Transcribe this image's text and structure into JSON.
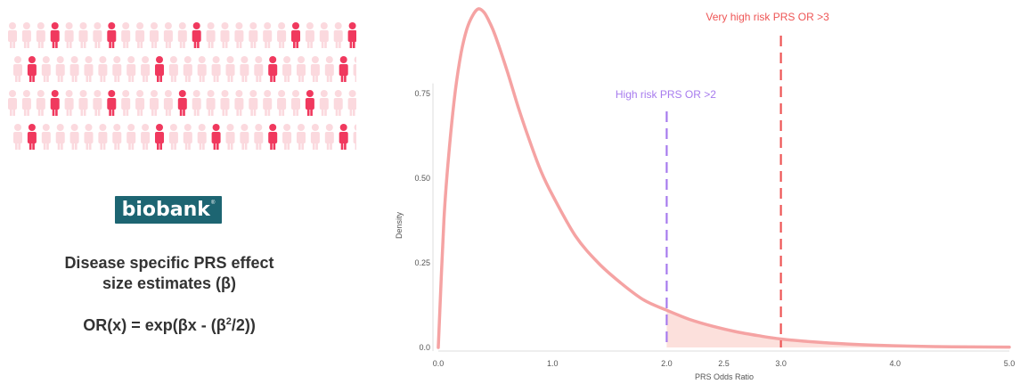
{
  "left_panel": {
    "logo_text": "biobank",
    "logo_mark": "®",
    "description_line1": "Disease specific PRS effect",
    "description_line2": "size estimates (β)",
    "formula_prefix": "OR(x) = exp(βx - (β",
    "formula_exp": "2",
    "formula_suffix": "/2))",
    "people_icon": "person-icon",
    "people_colors": {
      "highlight": "#f0395e",
      "faded": "#fbd9de"
    }
  },
  "chart_data": {
    "type": "area",
    "title": "",
    "xlabel": "PRS Odds Ratio",
    "ylabel": "Density",
    "xlim": [
      0,
      5
    ],
    "ylim": [
      0,
      1.0
    ],
    "x_ticks": [
      {
        "value": 0,
        "label": "0.0"
      },
      {
        "value": 1,
        "label": "1.0"
      },
      {
        "value": 2,
        "label": "2.0"
      },
      {
        "value": 2.5,
        "label": "2.5"
      },
      {
        "value": 3,
        "label": "3.0"
      },
      {
        "value": 4,
        "label": "4.0"
      },
      {
        "value": 5,
        "label": "5.0"
      }
    ],
    "y_ticks": [
      {
        "value": 0.0,
        "label": "0.0"
      },
      {
        "value": 0.25,
        "label": "0.25"
      },
      {
        "value": 0.5,
        "label": "0.50"
      },
      {
        "value": 0.75,
        "label": "0.75"
      }
    ],
    "series": [
      {
        "color": "#f5a3a3",
        "x": [
          0,
          0.05,
          0.1,
          0.15,
          0.2,
          0.25,
          0.3,
          0.35,
          0.4,
          0.45,
          0.5,
          0.6,
          0.7,
          0.8,
          0.9,
          1.0,
          1.2,
          1.4,
          1.6,
          1.8,
          2.0,
          2.2,
          2.4,
          2.6,
          2.8,
          3.0,
          3.3,
          3.6,
          4.0,
          4.5,
          5.0
        ],
        "y": [
          0.0,
          0.38,
          0.6,
          0.76,
          0.87,
          0.94,
          0.98,
          1.0,
          0.99,
          0.96,
          0.92,
          0.82,
          0.71,
          0.61,
          0.52,
          0.45,
          0.33,
          0.25,
          0.19,
          0.14,
          0.11,
          0.083,
          0.063,
          0.047,
          0.035,
          0.025,
          0.016,
          0.01,
          0.005,
          0.002,
          0.001
        ]
      }
    ],
    "shaded_region": {
      "from": 2.0,
      "to": 5.0,
      "color": "#fbd5d0"
    },
    "thresholds": [
      {
        "x": 2.0,
        "label": "High risk PRS OR >2",
        "color": "#a77bee"
      },
      {
        "x": 3.0,
        "label": "Very high risk PRS OR >3",
        "color": "#ee5555"
      }
    ],
    "grid": false,
    "legend": "none"
  }
}
